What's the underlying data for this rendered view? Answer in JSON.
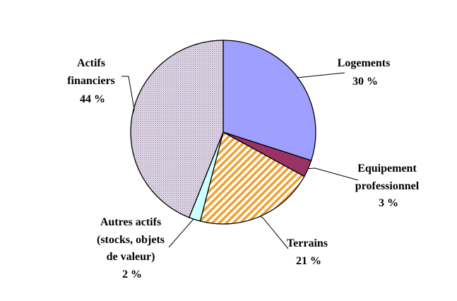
{
  "chart_data": {
    "type": "pie",
    "slices": [
      {
        "label_lines": [
          "Logements"
        ],
        "percent_label": "30 %",
        "value": 30,
        "color": "#9f9fff",
        "pattern": "solid"
      },
      {
        "label_lines": [
          "Equipement",
          "professionnel"
        ],
        "percent_label": "3 %",
        "value": 3,
        "color": "#993366",
        "pattern": "solid"
      },
      {
        "label_lines": [
          "Terrains"
        ],
        "percent_label": "21 %",
        "value": 21,
        "color": "#f0a030",
        "pattern": "diagonal-stripes"
      },
      {
        "label_lines": [
          "Autres actifs",
          "(stocks, objets",
          "de valeur)"
        ],
        "percent_label": "2 %",
        "value": 2,
        "color": "#ccffff",
        "pattern": "solid"
      },
      {
        "label_lines": [
          "Actifs",
          "financiers"
        ],
        "percent_label": "44 %",
        "value": 44,
        "color": "#9999bb",
        "pattern": "dotted"
      }
    ]
  }
}
